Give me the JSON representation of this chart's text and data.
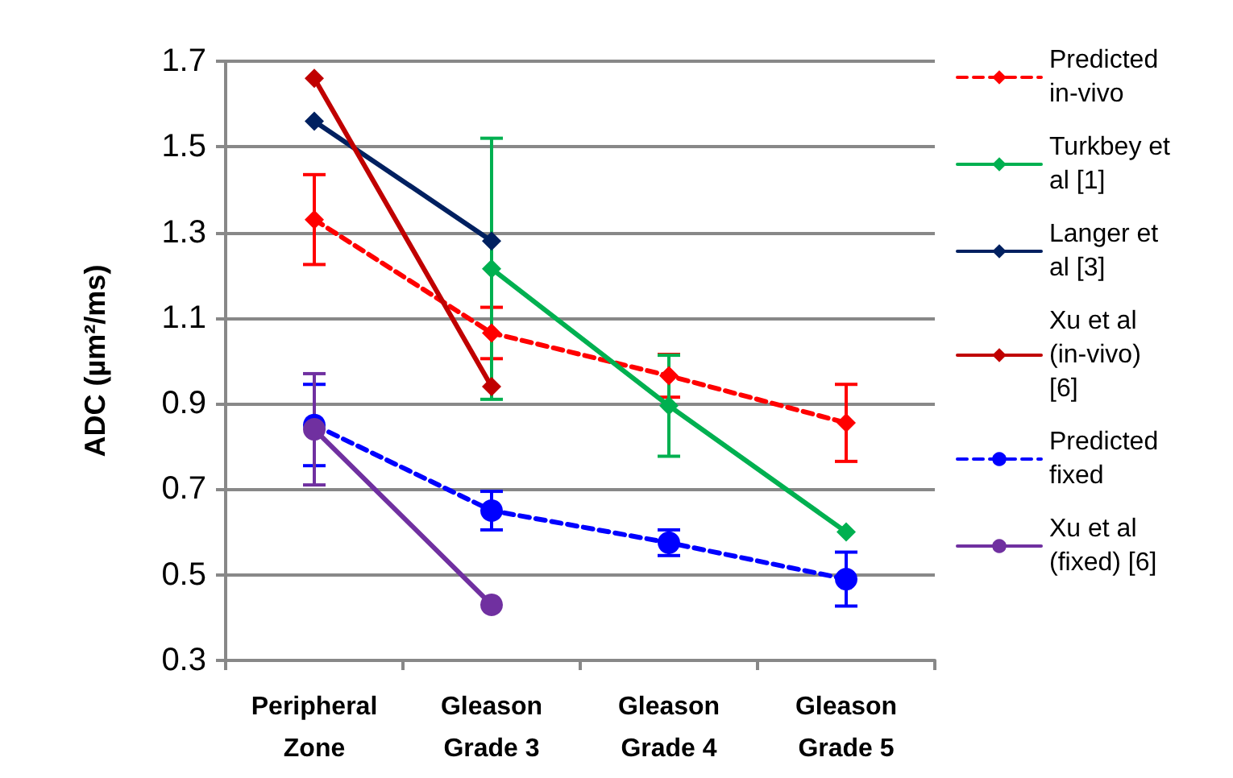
{
  "chart_data": {
    "type": "line",
    "ylabel": "ADC (µm²/ms)",
    "categories": [
      "Peripheral Zone",
      "Gleason Grade 3",
      "Gleason Grade 4",
      "Gleason Grade 5"
    ],
    "ylim": [
      0.3,
      1.7
    ],
    "yticks": [
      0.3,
      0.5,
      0.7,
      0.9,
      1.1,
      1.3,
      1.5,
      1.7
    ],
    "grid": "y",
    "legend": "right",
    "series": [
      {
        "name": "Predicted in-vivo",
        "color": "#ff0000",
        "values": [
          1.33,
          1.065,
          0.965,
          0.855
        ],
        "errors": [
          0.105,
          0.06,
          0.05,
          0.09
        ],
        "marker": "diamond",
        "line_style": "dashed"
      },
      {
        "name": "Turkbey et al [1]",
        "color": "#00b050",
        "values": [
          null,
          1.215,
          0.895,
          0.6
        ],
        "errors": [
          null,
          0.305,
          0.118,
          null
        ],
        "marker": "diamond",
        "line_style": "solid"
      },
      {
        "name": "Langer et al [3]",
        "color": "#002060",
        "values": [
          1.56,
          1.28,
          null,
          null
        ],
        "marker": "diamond",
        "line_style": "solid"
      },
      {
        "name": "Xu et al (in-vivo) [6]",
        "color": "#c00000",
        "values": [
          1.66,
          0.94,
          null,
          null
        ],
        "marker": "diamond",
        "line_style": "solid"
      },
      {
        "name": "Predicted fixed",
        "color": "#0000ff",
        "values": [
          0.85,
          0.65,
          0.575,
          0.49
        ],
        "errors": [
          0.095,
          0.045,
          0.03,
          0.063
        ],
        "marker": "circle",
        "line_style": "dashed"
      },
      {
        "name": "Xu et al (fixed) [6]",
        "color": "#7030a0",
        "values": [
          0.84,
          0.43,
          null,
          null
        ],
        "errors": [
          0.13,
          null,
          null,
          null
        ],
        "marker": "circle",
        "line_style": "solid"
      }
    ]
  }
}
